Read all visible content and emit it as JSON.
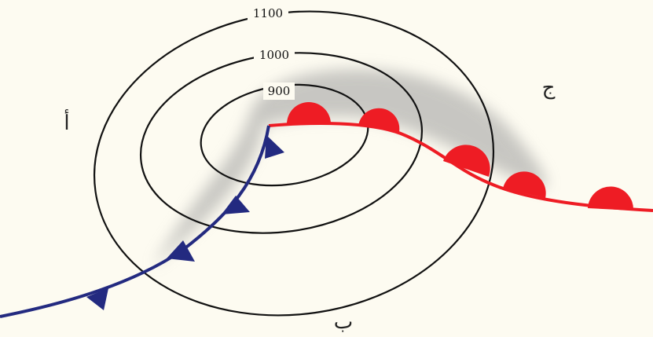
{
  "isobars": [
    {
      "label": "1100"
    },
    {
      "label": "1000"
    },
    {
      "label": "900"
    }
  ],
  "regions": {
    "a": "أ",
    "b": "ب",
    "c": "ج"
  },
  "colors": {
    "background": "#fdfbf1",
    "isobar": "#111111",
    "cold_front": "#232a80",
    "warm_front": "#ee1c24",
    "cloud_shade": "#9c9c9c"
  },
  "fronts": {
    "cold": {
      "symbol": "triangle",
      "count": 5
    },
    "warm": {
      "symbol": "semicircle",
      "count": 5
    }
  }
}
